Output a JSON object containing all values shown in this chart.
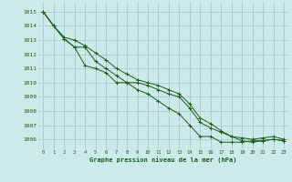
{
  "title": "Graphe pression niveau de la mer (hPa)",
  "background_color": "#cceaea",
  "grid_color": "#aacccc",
  "line_color": "#1a5c1a",
  "xlim": [
    -0.5,
    23.5
  ],
  "ylim": [
    1005.3,
    1015.7
  ],
  "yticks": [
    1006,
    1007,
    1008,
    1009,
    1010,
    1011,
    1012,
    1013,
    1014,
    1015
  ],
  "xticks": [
    0,
    1,
    2,
    3,
    4,
    5,
    6,
    7,
    8,
    9,
    10,
    11,
    12,
    13,
    14,
    15,
    16,
    17,
    18,
    19,
    20,
    21,
    22,
    23
  ],
  "line1": [
    1015.0,
    1014.0,
    1013.1,
    1012.5,
    1011.2,
    1011.0,
    1010.7,
    1010.0,
    1010.0,
    1009.5,
    1009.2,
    1008.7,
    1008.2,
    1007.8,
    1007.0,
    1006.2,
    1006.2,
    1005.8,
    1005.8,
    1005.8,
    1005.9,
    1005.9,
    1006.0,
    1005.9
  ],
  "line2": [
    1015.0,
    1014.0,
    1013.1,
    1012.5,
    1012.5,
    1011.5,
    1011.0,
    1010.5,
    1010.0,
    1010.0,
    1009.8,
    1009.5,
    1009.2,
    1009.0,
    1008.2,
    1007.2,
    1006.8,
    1006.5,
    1006.2,
    1005.9,
    1005.8,
    1005.9,
    1006.0,
    1005.9
  ],
  "line3": [
    1015.0,
    1014.0,
    1013.2,
    1013.0,
    1012.6,
    1012.1,
    1011.6,
    1011.0,
    1010.6,
    1010.2,
    1010.0,
    1009.8,
    1009.5,
    1009.2,
    1008.5,
    1007.5,
    1007.1,
    1006.6,
    1006.2,
    1006.1,
    1006.0,
    1006.1,
    1006.2,
    1006.0
  ]
}
